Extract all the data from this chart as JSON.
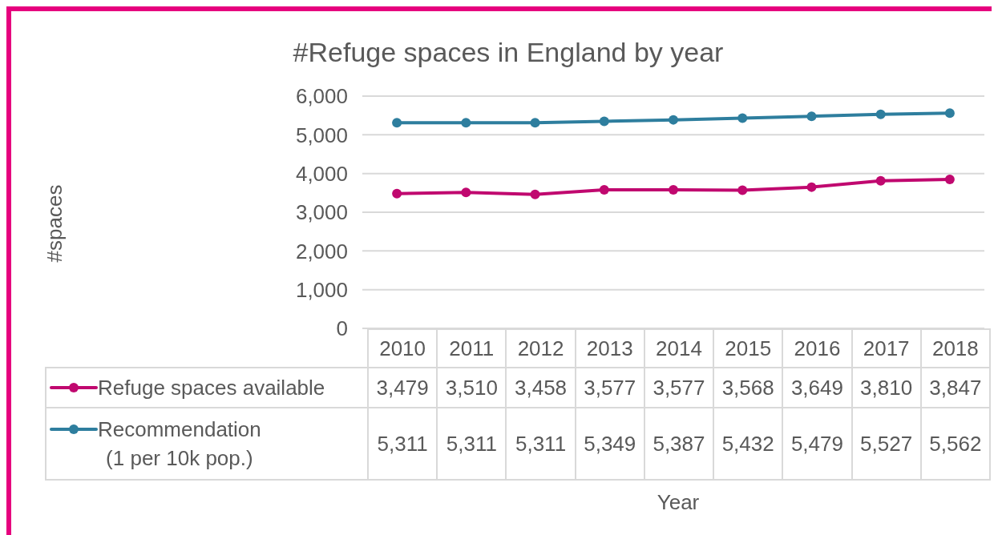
{
  "chart_data": {
    "type": "line",
    "title": "#Refuge spaces in England by year",
    "annotations": [
      "#spaces",
      "Year"
    ],
    "categories": [
      "2010",
      "2011",
      "2012",
      "2013",
      "2014",
      "2015",
      "2016",
      "2017",
      "2018"
    ],
    "series": [
      {
        "name": "Refuge spaces available",
        "color": "#c0086f",
        "values": [
          3479,
          3510,
          3458,
          3577,
          3577,
          3568,
          3649,
          3810,
          3847
        ],
        "value_labels": [
          "3,479",
          "3,510",
          "3,458",
          "3,577",
          "3,577",
          "3,568",
          "3,649",
          "3,810",
          "3,847"
        ]
      },
      {
        "name": "Recommendation\n(1 per 10k pop.)",
        "color": "#2e7e9e",
        "values": [
          5311,
          5311,
          5311,
          5349,
          5387,
          5432,
          5479,
          5527,
          5562
        ],
        "value_labels": [
          "5,311",
          "5,311",
          "5,311",
          "5,349",
          "5,387",
          "5,432",
          "5,479",
          "5,527",
          "5,562"
        ]
      }
    ],
    "ylim": [
      0,
      6000
    ],
    "yticks": [
      0,
      {
        "value": 1000,
        "label": "1,000"
      },
      {
        "value": 2000,
        "label": "2,000"
      },
      {
        "value": 3000,
        "label": "3,000"
      },
      {
        "value": 4000,
        "label": "4,000"
      },
      {
        "value": 5000,
        "label": "5,000"
      },
      {
        "value": 6000,
        "label": "6,000"
      }
    ],
    "grid": "y",
    "legend": "bottom",
    "marker": "circle",
    "line_style": "solid"
  }
}
